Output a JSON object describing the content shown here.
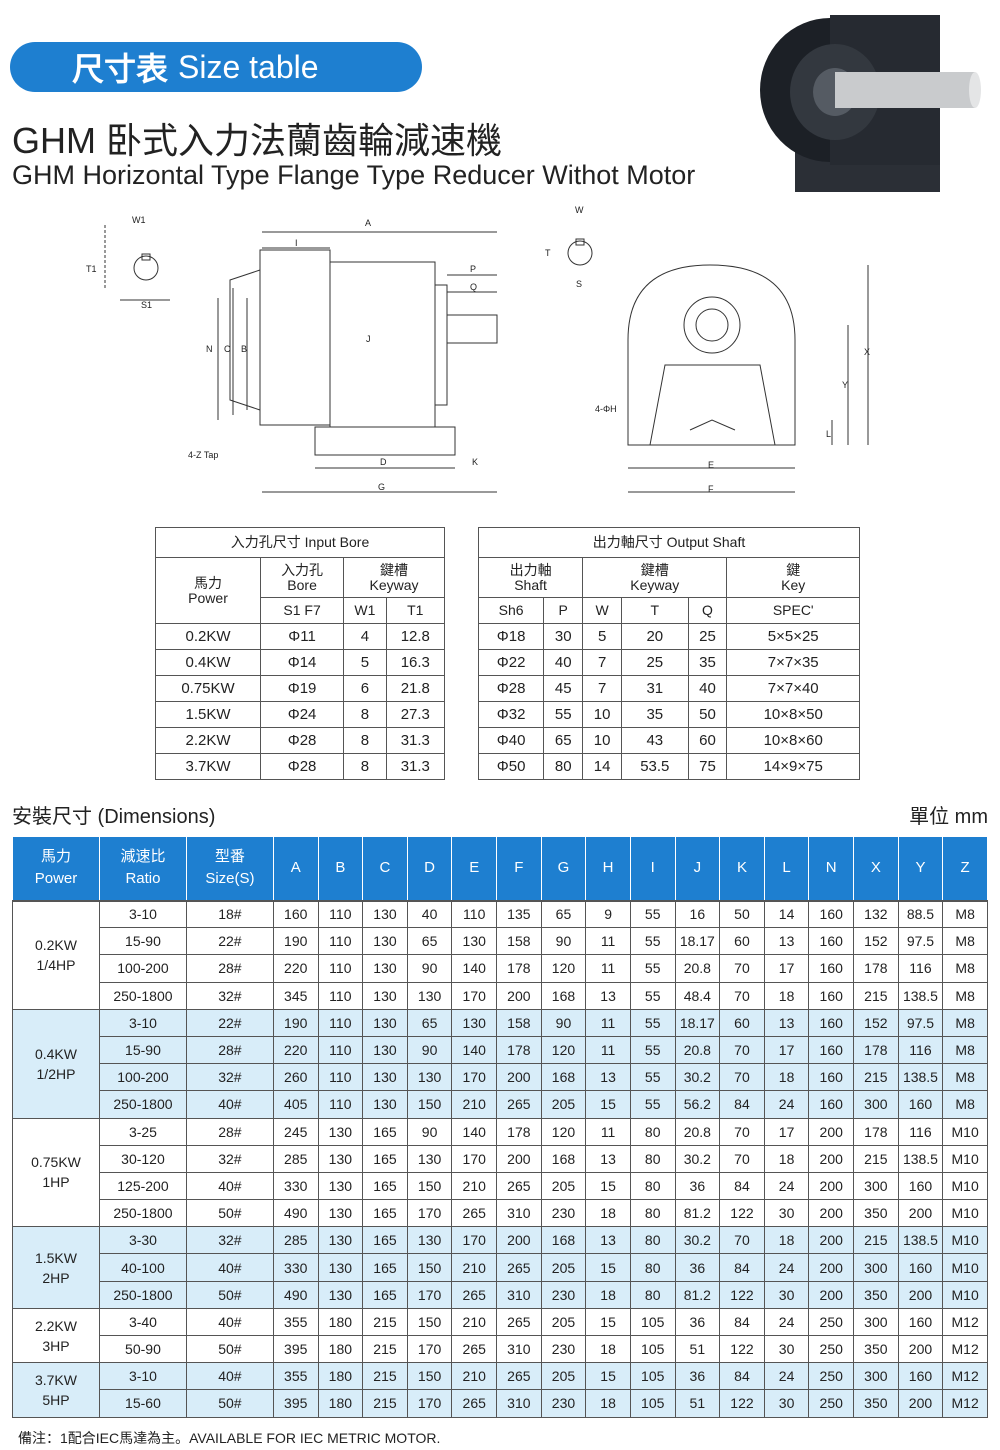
{
  "header": {
    "title_cn": "尺寸表",
    "title_en": "Size table",
    "model_cn": "GHM 卧式入力法蘭齒輪減速機",
    "model_en": "GHM  Horizontal Type Flange Type Reducer Withot Motor"
  },
  "drawing": {
    "labels": [
      "W1",
      "T1",
      "S1",
      "A",
      "I",
      "P",
      "Q",
      "N",
      "C",
      "B",
      "J",
      "4-Z  Tap",
      "D",
      "K",
      "G",
      "W",
      "T",
      "S",
      "X",
      "Y",
      "L",
      "4-ΦH",
      "E",
      "F"
    ]
  },
  "colors": {
    "accent": "#1e7fd0",
    "alt_row": "#d8edf9"
  },
  "input_bore": {
    "caption": "入力孔尺寸 Input Bore",
    "h_power": "馬力\nPower",
    "h_bore": "入力孔\nBore",
    "h_keyway": "鍵槽\nKeyway",
    "sub": [
      "S1   F7",
      "W1",
      "T1"
    ],
    "rows": [
      [
        "0.2KW",
        "Φ11",
        "4",
        "12.8"
      ],
      [
        "0.4KW",
        "Φ14",
        "5",
        "16.3"
      ],
      [
        "0.75KW",
        "Φ19",
        "6",
        "21.8"
      ],
      [
        "1.5KW",
        "Φ24",
        "8",
        "27.3"
      ],
      [
        "2.2KW",
        "Φ28",
        "8",
        "31.3"
      ],
      [
        "3.7KW",
        "Φ28",
        "8",
        "31.3"
      ]
    ]
  },
  "output_shaft": {
    "caption": "出力軸尺寸 Output Shaft",
    "h_shaft": "出力軸\nShaft",
    "h_keyway": "鍵槽\nKeyway",
    "h_key": "鍵\nKey",
    "sub": [
      "Sh6",
      "P",
      "W",
      "T",
      "Q",
      "SPEC'"
    ],
    "rows": [
      [
        "Φ18",
        "30",
        "5",
        "20",
        "25",
        "5×5×25"
      ],
      [
        "Φ22",
        "40",
        "7",
        "25",
        "35",
        "7×7×35"
      ],
      [
        "Φ28",
        "45",
        "7",
        "31",
        "40",
        "7×7×40"
      ],
      [
        "Φ32",
        "55",
        "10",
        "35",
        "50",
        "10×8×50"
      ],
      [
        "Φ40",
        "65",
        "10",
        "43",
        "60",
        "10×8×60"
      ],
      [
        "Φ50",
        "80",
        "14",
        "53.5",
        "75",
        "14×9×75"
      ]
    ]
  },
  "dimensions": {
    "title": "安裝尺寸 (Dimensions)",
    "unit": "單位 mm",
    "headers": [
      "馬力\nPower",
      "減速比\nRatio",
      "型番\nSize(S)",
      "A",
      "B",
      "C",
      "D",
      "E",
      "F",
      "G",
      "H",
      "I",
      "J",
      "K",
      "L",
      "N",
      "X",
      "Y",
      "Z"
    ],
    "groups": [
      {
        "power": "0.2KW\n1/4HP",
        "rows": [
          [
            "3-10",
            "18#",
            "160",
            "110",
            "130",
            "40",
            "110",
            "135",
            "65",
            "9",
            "55",
            "16",
            "50",
            "14",
            "160",
            "132",
            "88.5",
            "M8"
          ],
          [
            "15-90",
            "22#",
            "190",
            "110",
            "130",
            "65",
            "130",
            "158",
            "90",
            "11",
            "55",
            "18.17",
            "60",
            "13",
            "160",
            "152",
            "97.5",
            "M8"
          ],
          [
            "100-200",
            "28#",
            "220",
            "110",
            "130",
            "90",
            "140",
            "178",
            "120",
            "11",
            "55",
            "20.8",
            "70",
            "17",
            "160",
            "178",
            "116",
            "M8"
          ],
          [
            "250-1800",
            "32#",
            "345",
            "110",
            "130",
            "130",
            "170",
            "200",
            "168",
            "13",
            "55",
            "48.4",
            "70",
            "18",
            "160",
            "215",
            "138.5",
            "M8"
          ]
        ]
      },
      {
        "power": "0.4KW\n1/2HP",
        "rows": [
          [
            "3-10",
            "22#",
            "190",
            "110",
            "130",
            "65",
            "130",
            "158",
            "90",
            "11",
            "55",
            "18.17",
            "60",
            "13",
            "160",
            "152",
            "97.5",
            "M8"
          ],
          [
            "15-90",
            "28#",
            "220",
            "110",
            "130",
            "90",
            "140",
            "178",
            "120",
            "11",
            "55",
            "20.8",
            "70",
            "17",
            "160",
            "178",
            "116",
            "M8"
          ],
          [
            "100-200",
            "32#",
            "260",
            "110",
            "130",
            "130",
            "170",
            "200",
            "168",
            "13",
            "55",
            "30.2",
            "70",
            "18",
            "160",
            "215",
            "138.5",
            "M8"
          ],
          [
            "250-1800",
            "40#",
            "405",
            "110",
            "130",
            "150",
            "210",
            "265",
            "205",
            "15",
            "55",
            "56.2",
            "84",
            "24",
            "160",
            "300",
            "160",
            "M8"
          ]
        ]
      },
      {
        "power": "0.75KW\n1HP",
        "rows": [
          [
            "3-25",
            "28#",
            "245",
            "130",
            "165",
            "90",
            "140",
            "178",
            "120",
            "11",
            "80",
            "20.8",
            "70",
            "17",
            "200",
            "178",
            "116",
            "M10"
          ],
          [
            "30-120",
            "32#",
            "285",
            "130",
            "165",
            "130",
            "170",
            "200",
            "168",
            "13",
            "80",
            "30.2",
            "70",
            "18",
            "200",
            "215",
            "138.5",
            "M10"
          ],
          [
            "125-200",
            "40#",
            "330",
            "130",
            "165",
            "150",
            "210",
            "265",
            "205",
            "15",
            "80",
            "36",
            "84",
            "24",
            "200",
            "300",
            "160",
            "M10"
          ],
          [
            "250-1800",
            "50#",
            "490",
            "130",
            "165",
            "170",
            "265",
            "310",
            "230",
            "18",
            "80",
            "81.2",
            "122",
            "30",
            "200",
            "350",
            "200",
            "M10"
          ]
        ]
      },
      {
        "power": "1.5KW\n2HP",
        "rows": [
          [
            "3-30",
            "32#",
            "285",
            "130",
            "165",
            "130",
            "170",
            "200",
            "168",
            "13",
            "80",
            "30.2",
            "70",
            "18",
            "200",
            "215",
            "138.5",
            "M10"
          ],
          [
            "40-100",
            "40#",
            "330",
            "130",
            "165",
            "150",
            "210",
            "265",
            "205",
            "15",
            "80",
            "36",
            "84",
            "24",
            "200",
            "300",
            "160",
            "M10"
          ],
          [
            "250-1800",
            "50#",
            "490",
            "130",
            "165",
            "170",
            "265",
            "310",
            "230",
            "18",
            "80",
            "81.2",
            "122",
            "30",
            "200",
            "350",
            "200",
            "M10"
          ]
        ]
      },
      {
        "power": "2.2KW\n3HP",
        "rows": [
          [
            "3-40",
            "40#",
            "355",
            "180",
            "215",
            "150",
            "210",
            "265",
            "205",
            "15",
            "105",
            "36",
            "84",
            "24",
            "250",
            "300",
            "160",
            "M12"
          ],
          [
            "50-90",
            "50#",
            "395",
            "180",
            "215",
            "170",
            "265",
            "310",
            "230",
            "18",
            "105",
            "51",
            "122",
            "30",
            "250",
            "350",
            "200",
            "M12"
          ]
        ]
      },
      {
        "power": "3.7KW\n5HP",
        "rows": [
          [
            "3-10",
            "40#",
            "355",
            "180",
            "215",
            "150",
            "210",
            "265",
            "205",
            "15",
            "105",
            "36",
            "84",
            "24",
            "250",
            "300",
            "160",
            "M12"
          ],
          [
            "15-60",
            "50#",
            "395",
            "180",
            "215",
            "170",
            "265",
            "310",
            "230",
            "18",
            "105",
            "51",
            "122",
            "30",
            "250",
            "350",
            "200",
            "M12"
          ]
        ]
      }
    ]
  },
  "footnote": "備注：1配合IEC馬達為主。AVAILABLE FOR IEC METRIC MOTOR."
}
